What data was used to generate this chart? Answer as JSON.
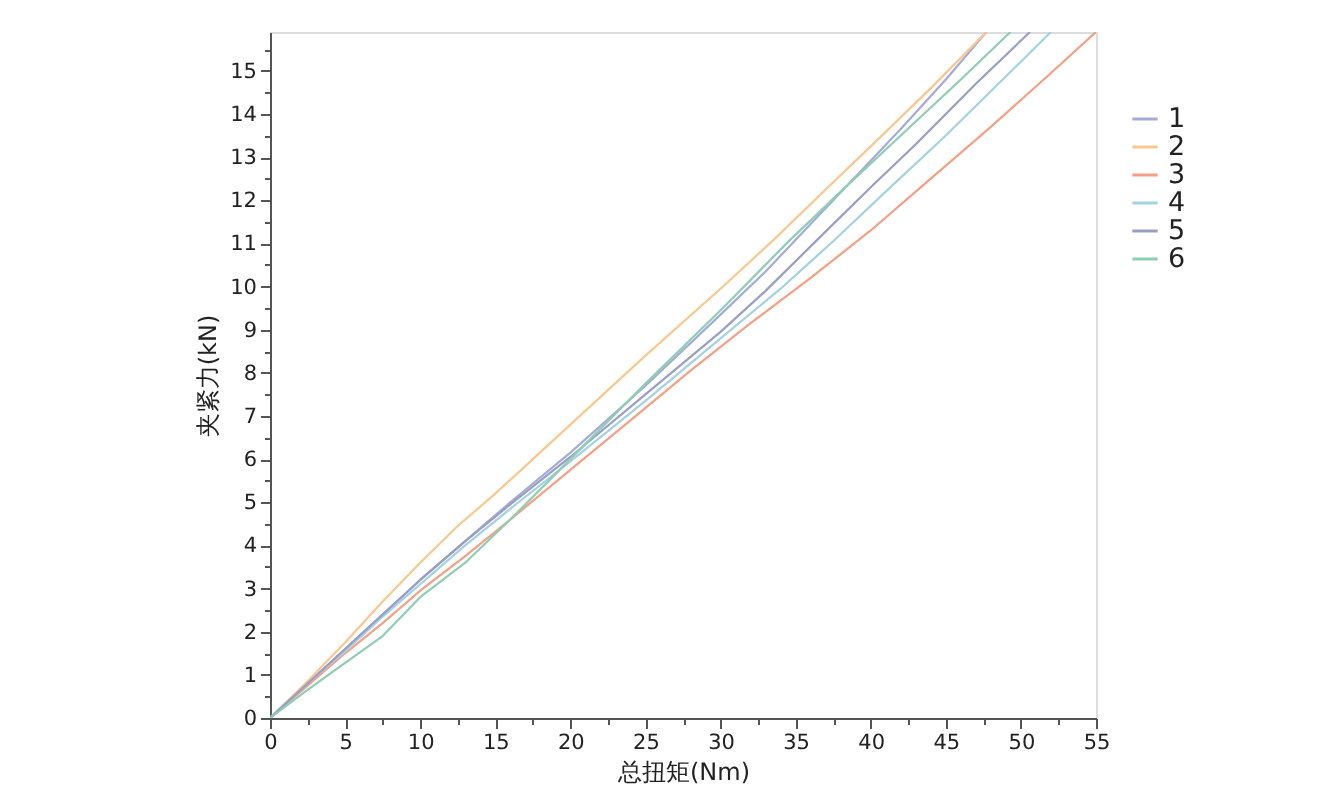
{
  "chart_data": {
    "type": "line",
    "xlabel": "总扭矩(Nm)",
    "ylabel": "夹紧力(kN)",
    "xlim": [
      0,
      55
    ],
    "ylim": [
      0,
      15.9
    ],
    "xticks": [
      0,
      {
        "value": 2.5,
        "label": null
      },
      5,
      {
        "value": 7.5,
        "label": null
      },
      10,
      {
        "value": 12.5,
        "label": null
      },
      15,
      {
        "value": 17.5,
        "label": null
      },
      20,
      {
        "value": 22.5,
        "label": null
      },
      25,
      {
        "value": 27.5,
        "label": null
      },
      30,
      {
        "value": 32.5,
        "label": null
      },
      35,
      {
        "value": 37.5,
        "label": null
      },
      40,
      {
        "value": 42.5,
        "label": null
      },
      45,
      {
        "value": 47.5,
        "label": null
      },
      50,
      {
        "value": 52.5,
        "label": null
      },
      55
    ],
    "yticks": [
      0,
      {
        "value": 0.5,
        "label": null
      },
      1,
      {
        "value": 1.5,
        "label": null
      },
      2,
      {
        "value": 2.5,
        "label": null
      },
      3,
      {
        "value": 3.5,
        "label": null
      },
      4,
      {
        "value": 4.5,
        "label": null
      },
      5,
      {
        "value": 5.5,
        "label": null
      },
      6,
      {
        "value": 6.5,
        "label": null
      },
      7,
      {
        "value": 7.5,
        "label": null
      },
      8,
      {
        "value": 8.5,
        "label": null
      },
      9,
      {
        "value": 9.5,
        "label": null
      },
      10,
      {
        "value": 10.5,
        "label": null
      },
      11,
      {
        "value": 11.5,
        "label": null
      },
      12,
      {
        "value": 12.5,
        "label": null
      },
      13,
      {
        "value": 13.5,
        "label": null
      },
      14,
      {
        "value": 14.5,
        "label": null
      },
      15,
      {
        "value": 15.5,
        "label": null
      }
    ],
    "legend": "top right",
    "line_style": "solid",
    "series": [
      {
        "name": "1",
        "color": "#a5abd8",
        "x": [
          0,
          2.5,
          5,
          7.5,
          10,
          13,
          16,
          20,
          25,
          30,
          33,
          36,
          39,
          42,
          45,
          47.7
        ],
        "values": [
          0,
          0.8,
          1.6,
          2.4,
          3.2,
          4.1,
          5.0,
          6.15,
          7.7,
          9.35,
          10.35,
          11.45,
          12.55,
          13.65,
          14.8,
          15.9
        ]
      },
      {
        "name": "2",
        "color": "#fac88e",
        "x": [
          0,
          2.5,
          5,
          7.5,
          10,
          12.5,
          15,
          20,
          25,
          30,
          33.5,
          37,
          40,
          44,
          47.7
        ],
        "values": [
          0,
          0.85,
          1.75,
          2.7,
          3.6,
          4.45,
          5.2,
          6.8,
          8.4,
          9.95,
          11.07,
          12.25,
          13.25,
          14.6,
          15.9
        ]
      },
      {
        "name": "3",
        "color": "#f5a084",
        "x": [
          0,
          2.5,
          5,
          7.5,
          10,
          13,
          16,
          20,
          24,
          28,
          32,
          36,
          40,
          44,
          48,
          52,
          55
        ],
        "values": [
          0,
          0.75,
          1.5,
          2.2,
          2.95,
          3.75,
          4.6,
          5.75,
          6.9,
          8.05,
          9.15,
          10.2,
          11.3,
          12.5,
          13.7,
          14.95,
          15.9
        ]
      },
      {
        "name": "4",
        "color": "#a3d2e2",
        "x": [
          0,
          2.5,
          5,
          7.5,
          10,
          13,
          16,
          20,
          25,
          30,
          34,
          37.5,
          41,
          45,
          48.5,
          52
        ],
        "values": [
          0,
          0.8,
          1.55,
          2.35,
          3.1,
          4.0,
          4.85,
          5.95,
          7.35,
          8.8,
          9.95,
          11.05,
          12.2,
          13.5,
          14.7,
          15.9
        ]
      },
      {
        "name": "5",
        "color": "#9a9ec6",
        "x": [
          0,
          2.5,
          5,
          7.5,
          10,
          13,
          16,
          20,
          25,
          30,
          33,
          36.4,
          40,
          43,
          47,
          50.6
        ],
        "values": [
          0,
          0.8,
          1.6,
          2.4,
          3.2,
          4.1,
          4.95,
          6.05,
          7.5,
          8.95,
          9.9,
          11.07,
          12.3,
          13.3,
          14.7,
          15.9
        ]
      },
      {
        "name": "6",
        "color": "#8fcdb4",
        "x": [
          0,
          2.5,
          5,
          7.5,
          10,
          13,
          16,
          20,
          25,
          30,
          34.6,
          38,
          42,
          46,
          49.3
        ],
        "values": [
          0,
          0.65,
          1.28,
          1.9,
          2.8,
          3.6,
          4.6,
          6.0,
          7.75,
          9.45,
          11.07,
          12.2,
          13.5,
          14.8,
          15.9
        ]
      }
    ]
  }
}
